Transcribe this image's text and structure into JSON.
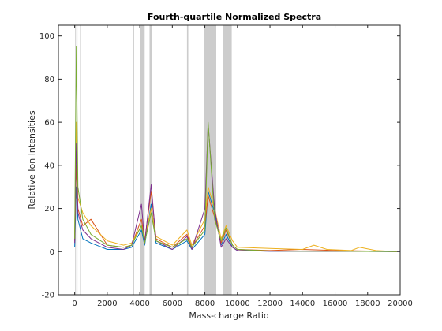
{
  "chart_data": {
    "type": "line",
    "title": "Fourth-quartile Normalized Spectra",
    "xlabel": "Mass-charge Ratio",
    "ylabel": "Relative Ion Intensities",
    "xlim": [
      -1000,
      20000
    ],
    "ylim": [
      -20,
      105
    ],
    "xticks": [
      0,
      2000,
      4000,
      6000,
      8000,
      10000,
      12000,
      14000,
      16000,
      18000,
      20000
    ],
    "yticks": [
      -20,
      0,
      20,
      40,
      60,
      80,
      100
    ],
    "grid": false,
    "legend": "none",
    "highlighted_regions": [
      [
        30,
        60
      ],
      [
        120,
        160
      ],
      [
        330,
        360
      ],
      [
        3600,
        3650
      ],
      [
        4000,
        4300
      ],
      [
        4600,
        4750
      ],
      [
        6900,
        6980
      ],
      [
        7950,
        8700
      ],
      [
        9100,
        9650
      ]
    ],
    "colors": {
      "region": "#cccccc",
      "axis": "#262626",
      "series": [
        "#0072bd",
        "#d95319",
        "#edb120",
        "#7e2f8e",
        "#77ac30"
      ]
    },
    "series": [
      {
        "x": [
          0,
          100,
          200,
          500,
          1000,
          2000,
          3000,
          3500,
          4100,
          4300,
          4700,
          5000,
          6000,
          6900,
          7200,
          8000,
          8200,
          8600,
          9000,
          9300,
          9700,
          10000,
          12000,
          14000,
          16000,
          18000,
          19800
        ],
        "y": [
          2,
          30,
          15,
          6,
          4,
          1,
          1,
          2,
          10,
          3,
          22,
          4,
          1,
          5,
          1,
          8,
          28,
          18,
          3,
          8,
          2,
          0.5,
          0.2,
          0.2,
          0.1,
          0.1,
          0
        ]
      },
      {
        "x": [
          0,
          100,
          200,
          500,
          1000,
          2000,
          3000,
          3500,
          4100,
          4300,
          4700,
          5000,
          6000,
          6900,
          7200,
          8000,
          8200,
          8600,
          9000,
          9300,
          9700,
          10000,
          12000,
          14000,
          16000,
          18000,
          19800
        ],
        "y": [
          5,
          40,
          20,
          12,
          15,
          3,
          2,
          3,
          15,
          5,
          28,
          6,
          2,
          8,
          2,
          12,
          26,
          16,
          4,
          10,
          3,
          1,
          0.5,
          1,
          0.5,
          0.3,
          0
        ]
      },
      {
        "x": [
          0,
          100,
          200,
          500,
          1000,
          2000,
          3000,
          3500,
          4100,
          4300,
          4700,
          5000,
          6000,
          6900,
          7200,
          8000,
          8200,
          8600,
          9000,
          9300,
          9700,
          10000,
          12000,
          14000,
          14700,
          15500,
          17000,
          17500,
          18500,
          19800
        ],
        "y": [
          8,
          60,
          25,
          18,
          12,
          5,
          3,
          4,
          12,
          6,
          20,
          7,
          3,
          10,
          3,
          15,
          30,
          20,
          6,
          12,
          5,
          2,
          1.5,
          1,
          3,
          1,
          0.5,
          2,
          0.5,
          0
        ]
      },
      {
        "x": [
          0,
          100,
          200,
          500,
          1000,
          2000,
          3000,
          3500,
          4100,
          4300,
          4700,
          5000,
          6000,
          6900,
          7200,
          8000,
          8200,
          8600,
          9000,
          9300,
          9700,
          10000,
          12000,
          14000,
          16000,
          18000,
          19800
        ],
        "y": [
          4,
          50,
          18,
          10,
          6,
          2,
          1,
          3,
          22,
          4,
          31,
          5,
          1,
          7,
          1,
          20,
          59,
          20,
          2,
          6,
          2,
          0.5,
          0.2,
          0.2,
          0.1,
          0.1,
          0
        ]
      },
      {
        "x": [
          0,
          100,
          200,
          500,
          1000,
          2000,
          3000,
          3500,
          4100,
          4300,
          4700,
          5000,
          6000,
          6900,
          7200,
          8000,
          8200,
          8600,
          9000,
          9300,
          9700,
          10000,
          12000,
          14000,
          16000,
          18000,
          19800
        ],
        "y": [
          6,
          95,
          30,
          15,
          8,
          3,
          2,
          3,
          12,
          4,
          18,
          5,
          2,
          6,
          2,
          10,
          60,
          15,
          5,
          11,
          3,
          1,
          0.3,
          0.2,
          0.2,
          0.1,
          0
        ]
      }
    ]
  }
}
